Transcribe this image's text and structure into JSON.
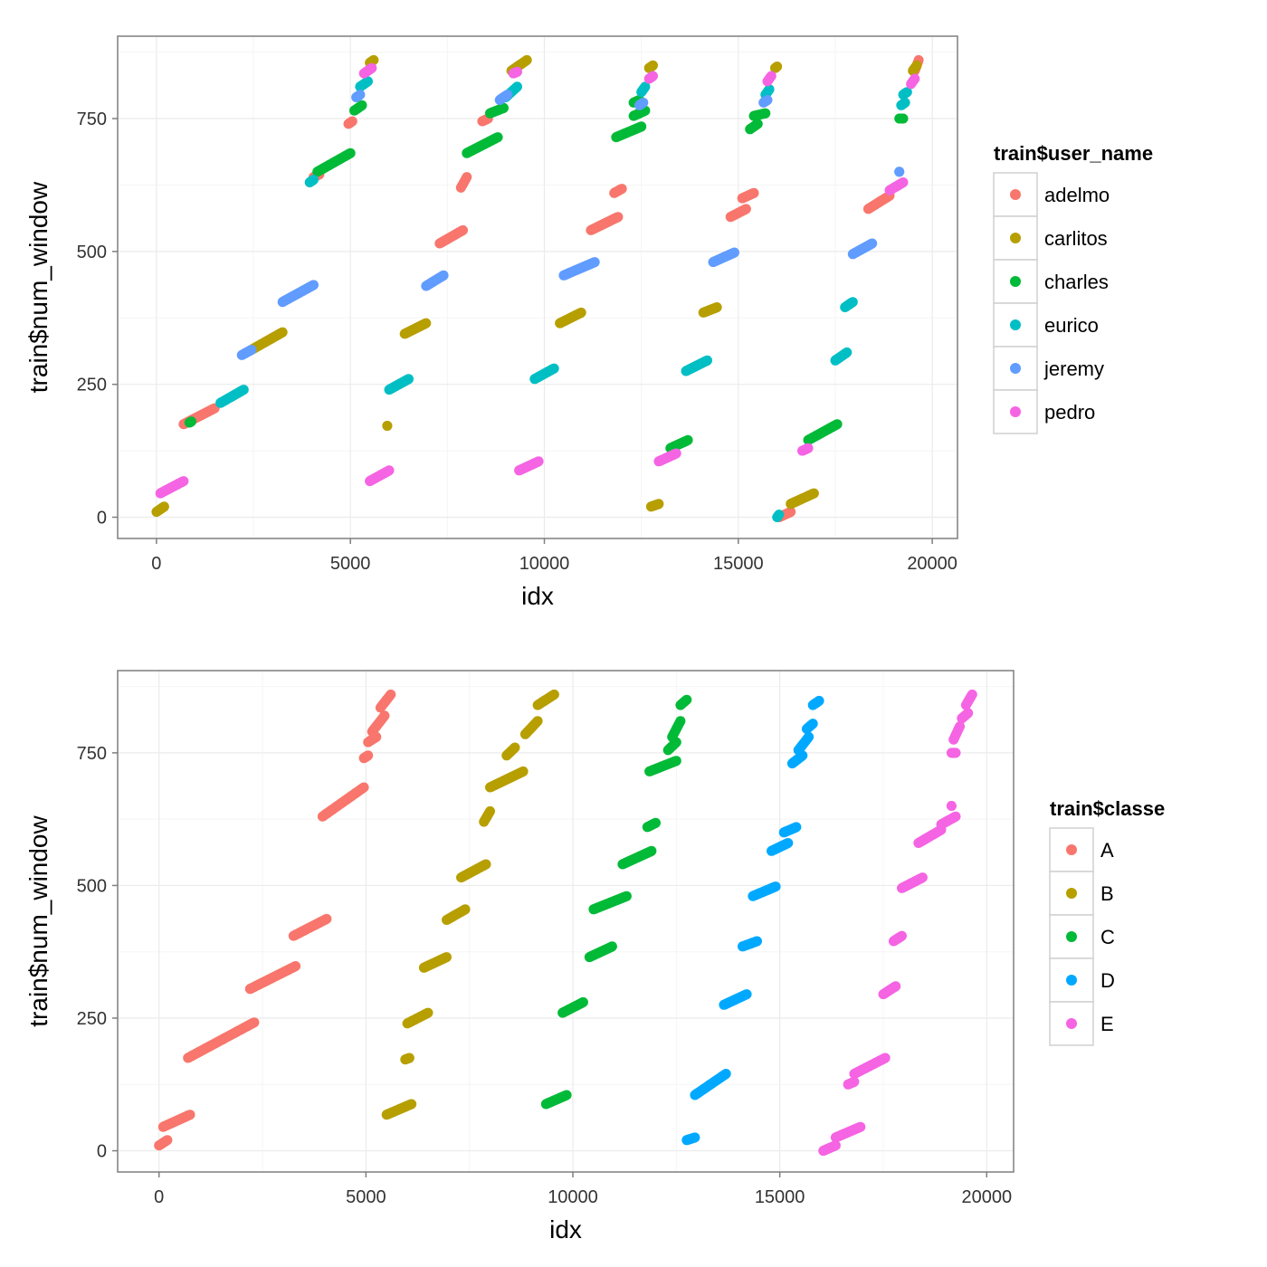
{
  "chart_data": [
    {
      "type": "scatter",
      "xlabel": "idx",
      "ylabel": "train$num_window",
      "xlim": [
        -1000,
        20650
      ],
      "ylim": [
        -40,
        905
      ],
      "xticks": [
        0,
        5000,
        10000,
        15000,
        20000
      ],
      "xtick_labels": [
        "0",
        "5000",
        "10000",
        "15000",
        "20000"
      ],
      "yticks": [
        0,
        250,
        500,
        750
      ],
      "ytick_labels": [
        "0",
        "250",
        "500",
        "750"
      ],
      "grid": true,
      "legend_position": "right",
      "legend_title": "train$user_name",
      "series": [
        {
          "name": "adelmo",
          "color": "#F8766D",
          "segments": [
            [
              700,
              175,
              1500,
              205
            ],
            [
              4050,
              640,
              4200,
              645
            ],
            [
              4950,
              740,
              5050,
              745
            ],
            [
              7300,
              515,
              7900,
              540
            ],
            [
              7850,
              620,
              8000,
              640
            ],
            [
              8400,
              745,
              8550,
              750
            ],
            [
              11200,
              540,
              11900,
              565
            ],
            [
              11800,
              610,
              12000,
              618
            ],
            [
              14800,
              565,
              15200,
              580
            ],
            [
              15100,
              600,
              15400,
              610
            ],
            [
              16050,
              0,
              16350,
              10
            ],
            [
              18350,
              580,
              18900,
              605
            ],
            [
              19550,
              840,
              19650,
              860
            ]
          ]
        },
        {
          "name": "carlitos",
          "color": "#B79F00",
          "segments": [
            [
              0,
              10,
              200,
              20
            ],
            [
              2450,
              315,
              3250,
              348
            ],
            [
              5500,
              855,
              5600,
              860
            ],
            [
              5950,
              172,
              5950,
              172
            ],
            [
              6400,
              345,
              6950,
              365
            ],
            [
              9150,
              840,
              9550,
              860
            ],
            [
              10400,
              365,
              10950,
              385
            ],
            [
              12700,
              845,
              12800,
              850
            ],
            [
              12750,
              20,
              12950,
              25
            ],
            [
              14100,
              385,
              14450,
              395
            ],
            [
              15950,
              845,
              16000,
              848
            ],
            [
              16350,
              25,
              16950,
              45
            ],
            [
              19500,
              840,
              19600,
              850
            ]
          ]
        },
        {
          "name": "charles",
          "color": "#00BA38",
          "segments": [
            [
              850,
              178,
              900,
              180
            ],
            [
              4150,
              650,
              5000,
              685
            ],
            [
              5100,
              765,
              5300,
              775
            ],
            [
              8000,
              685,
              8800,
              715
            ],
            [
              8600,
              760,
              8950,
              770
            ],
            [
              11850,
              715,
              12500,
              735
            ],
            [
              12300,
              755,
              12600,
              765
            ],
            [
              12300,
              780,
              12450,
              785
            ],
            [
              13250,
              130,
              13700,
              145
            ],
            [
              15300,
              730,
              15500,
              740
            ],
            [
              15400,
              755,
              15700,
              760
            ],
            [
              16800,
              145,
              17550,
              175
            ],
            [
              19150,
              750,
              19250,
              750
            ]
          ]
        },
        {
          "name": "eurico",
          "color": "#00BFC4",
          "segments": [
            [
              1650,
              215,
              2250,
              240
            ],
            [
              3950,
              630,
              4050,
              635
            ],
            [
              5250,
              810,
              5450,
              820
            ],
            [
              6000,
              240,
              6500,
              260
            ],
            [
              9000,
              790,
              9300,
              810
            ],
            [
              9750,
              260,
              10250,
              280
            ],
            [
              12500,
              800,
              12600,
              810
            ],
            [
              13650,
              275,
              14200,
              295
            ],
            [
              15700,
              795,
              15800,
              805
            ],
            [
              16000,
              0,
              16050,
              5
            ],
            [
              17500,
              295,
              17800,
              310
            ],
            [
              17750,
              395,
              17950,
              405
            ],
            [
              19250,
              795,
              19350,
              800
            ],
            [
              19200,
              775,
              19300,
              780
            ]
          ]
        },
        {
          "name": "jeremy",
          "color": "#619CFF",
          "segments": [
            [
              2200,
              305,
              2450,
              315
            ],
            [
              3250,
              405,
              4050,
              437
            ],
            [
              5150,
              790,
              5250,
              795
            ],
            [
              6950,
              435,
              7400,
              455
            ],
            [
              8850,
              785,
              9050,
              795
            ],
            [
              10500,
              455,
              11300,
              480
            ],
            [
              12450,
              775,
              12550,
              780
            ],
            [
              14350,
              480,
              14900,
              498
            ],
            [
              15650,
              780,
              15750,
              785
            ],
            [
              17950,
              495,
              18450,
              515
            ],
            [
              19150,
              650,
              19150,
              650
            ]
          ]
        },
        {
          "name": "pedro",
          "color": "#F564E3",
          "segments": [
            [
              100,
              45,
              700,
              68
            ],
            [
              5350,
              835,
              5550,
              845
            ],
            [
              5500,
              68,
              6000,
              88
            ],
            [
              9200,
              835,
              9300,
              838
            ],
            [
              9350,
              88,
              9850,
              105
            ],
            [
              12700,
              825,
              12800,
              830
            ],
            [
              12950,
              105,
              13400,
              120
            ],
            [
              15750,
              820,
              15850,
              830
            ],
            [
              16650,
              125,
              16800,
              130
            ],
            [
              18900,
              615,
              19250,
              630
            ],
            [
              19450,
              815,
              19550,
              825
            ]
          ]
        }
      ]
    },
    {
      "type": "scatter",
      "xlabel": "idx",
      "ylabel": "train$num_window",
      "xlim": [
        -1000,
        20650
      ],
      "ylim": [
        -40,
        905
      ],
      "xticks": [
        0,
        5000,
        10000,
        15000,
        20000
      ],
      "xtick_labels": [
        "0",
        "5000",
        "10000",
        "15000",
        "20000"
      ],
      "yticks": [
        0,
        250,
        500,
        750
      ],
      "ytick_labels": [
        "0",
        "250",
        "500",
        "750"
      ],
      "grid": true,
      "legend_position": "right",
      "legend_title": "train$classe",
      "series": [
        {
          "name": "A",
          "color": "#F8766D",
          "segments": [
            [
              0,
              10,
              200,
              20
            ],
            [
              100,
              45,
              750,
              68
            ],
            [
              700,
              175,
              2300,
              242
            ],
            [
              2200,
              305,
              3300,
              348
            ],
            [
              3250,
              405,
              4050,
              437
            ],
            [
              3950,
              630,
              4950,
              685
            ],
            [
              4950,
              740,
              5050,
              745
            ],
            [
              5050,
              770,
              5250,
              780
            ],
            [
              5150,
              790,
              5450,
              820
            ],
            [
              5350,
              835,
              5600,
              860
            ]
          ]
        },
        {
          "name": "B",
          "color": "#B79F00",
          "segments": [
            [
              5500,
              68,
              6100,
              88
            ],
            [
              5950,
              172,
              6050,
              175
            ],
            [
              6000,
              240,
              6500,
              260
            ],
            [
              6400,
              345,
              6950,
              365
            ],
            [
              6950,
              435,
              7400,
              455
            ],
            [
              7300,
              515,
              7900,
              540
            ],
            [
              7850,
              620,
              8000,
              640
            ],
            [
              8000,
              685,
              8800,
              715
            ],
            [
              8400,
              745,
              8600,
              760
            ],
            [
              8850,
              785,
              9150,
              810
            ],
            [
              9150,
              840,
              9550,
              860
            ]
          ]
        },
        {
          "name": "C",
          "color": "#00BA38",
          "segments": [
            [
              9350,
              88,
              9850,
              105
            ],
            [
              9750,
              260,
              10250,
              280
            ],
            [
              10400,
              365,
              10950,
              385
            ],
            [
              10500,
              455,
              11300,
              480
            ],
            [
              11200,
              540,
              11900,
              565
            ],
            [
              11800,
              610,
              12000,
              618
            ],
            [
              11850,
              715,
              12500,
              735
            ],
            [
              12300,
              755,
              12500,
              770
            ],
            [
              12400,
              780,
              12600,
              810
            ],
            [
              12600,
              840,
              12750,
              850
            ]
          ]
        },
        {
          "name": "D",
          "color": "#00A9FF",
          "segments": [
            [
              12750,
              20,
              12950,
              25
            ],
            [
              12950,
              105,
              13700,
              145
            ],
            [
              13650,
              275,
              14200,
              295
            ],
            [
              14100,
              385,
              14450,
              395
            ],
            [
              14350,
              480,
              14900,
              498
            ],
            [
              14800,
              565,
              15200,
              580
            ],
            [
              15100,
              600,
              15400,
              610
            ],
            [
              15300,
              730,
              15550,
              745
            ],
            [
              15450,
              755,
              15700,
              780
            ],
            [
              15650,
              795,
              15800,
              805
            ],
            [
              15800,
              840,
              15950,
              848
            ]
          ]
        },
        {
          "name": "E",
          "color": "#F564E3",
          "segments": [
            [
              16050,
              0,
              16350,
              10
            ],
            [
              16350,
              25,
              16950,
              45
            ],
            [
              16650,
              125,
              16800,
              130
            ],
            [
              16800,
              145,
              17550,
              175
            ],
            [
              17500,
              295,
              17800,
              310
            ],
            [
              17750,
              395,
              17950,
              405
            ],
            [
              17950,
              495,
              18450,
              515
            ],
            [
              18350,
              580,
              18900,
              605
            ],
            [
              18900,
              615,
              19250,
              630
            ],
            [
              19150,
              650,
              19150,
              650
            ],
            [
              19150,
              750,
              19250,
              750
            ],
            [
              19200,
              775,
              19350,
              800
            ],
            [
              19400,
              815,
              19550,
              825
            ],
            [
              19500,
              840,
              19650,
              860
            ]
          ]
        }
      ]
    }
  ]
}
